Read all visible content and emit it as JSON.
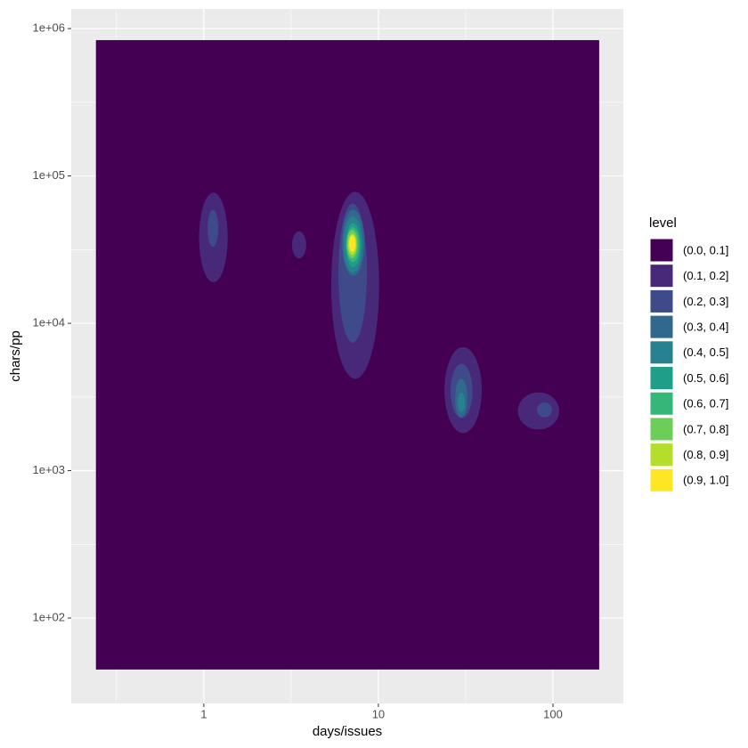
{
  "chart_data": {
    "type": "contour",
    "x_label": "days/issues",
    "y_label": "chars/pp",
    "log_x": true,
    "log_y": true,
    "grid": true,
    "xlim": [
      0.174,
      253
    ],
    "ylim": [
      26.3,
      1360000
    ],
    "xticks": [
      1,
      10,
      100
    ],
    "yticks": [
      {
        "value": 100,
        "label": "1e+02"
      },
      {
        "value": 1000,
        "label": "1e+03"
      },
      {
        "value": 10000,
        "label": "1e+04"
      },
      {
        "value": 100000,
        "label": "1e+05"
      },
      {
        "value": 1000000,
        "label": "1e+06"
      }
    ],
    "xminor": [
      0.316,
      3.162,
      31.62
    ],
    "yminor": [
      316.2,
      3162,
      31620,
      316200
    ],
    "legend_title": "level",
    "legend_position": "right",
    "levels": [
      {
        "name": "(0.0, 0.1]",
        "color": "#440154"
      },
      {
        "name": "(0.1, 0.2]",
        "color": "#482878"
      },
      {
        "name": "(0.2, 0.3]",
        "color": "#3E4A89"
      },
      {
        "name": "(0.3, 0.4]",
        "color": "#31688E"
      },
      {
        "name": "(0.4, 0.5]",
        "color": "#26828E"
      },
      {
        "name": "(0.5, 0.6]",
        "color": "#1F9E89"
      },
      {
        "name": "(0.6, 0.7]",
        "color": "#35B779"
      },
      {
        "name": "(0.7, 0.8]",
        "color": "#6DCD59"
      },
      {
        "name": "(0.8, 0.9]",
        "color": "#B4DE2C"
      },
      {
        "name": "(0.9, 1.0]",
        "color": "#FDE725"
      }
    ],
    "contours": [
      {
        "level": 0,
        "shape": "rect",
        "x": [
          0.241,
          184
        ],
        "y": [
          44.7,
          835000
        ]
      },
      {
        "level": 1,
        "x": [
          0.94,
          1.37
        ],
        "y": [
          19000,
          77000
        ]
      },
      {
        "level": 2,
        "x": [
          1.05,
          1.21
        ],
        "y": [
          33000,
          59000
        ]
      },
      {
        "level": 1,
        "x": [
          3.2,
          3.86
        ],
        "y": [
          27600,
          42000
        ]
      },
      {
        "level": 1,
        "x": [
          5.37,
          10.1
        ],
        "y": [
          4200,
          78000
        ]
      },
      {
        "level": 2,
        "x": [
          5.9,
          8.6
        ],
        "y": [
          7400,
          65000
        ]
      },
      {
        "level": 3,
        "x": [
          6.2,
          8.3
        ],
        "y": [
          21000,
          59000
        ]
      },
      {
        "level": 4,
        "x": [
          6.3,
          8.1
        ],
        "y": [
          22000,
          53000
        ]
      },
      {
        "level": 5,
        "x": [
          6.5,
          7.9
        ],
        "y": [
          24000,
          48000
        ]
      },
      {
        "level": 6,
        "x": [
          6.55,
          7.8
        ],
        "y": [
          26000,
          45000
        ]
      },
      {
        "level": 7,
        "x": [
          6.6,
          7.6
        ],
        "y": [
          27500,
          43000
        ]
      },
      {
        "level": 8,
        "x": [
          6.7,
          7.5
        ],
        "y": [
          29000,
          40500
        ]
      },
      {
        "level": 9,
        "x": [
          6.8,
          7.4
        ],
        "y": [
          30500,
          39500
        ]
      },
      {
        "level": 1,
        "x": [
          23.9,
          39.1
        ],
        "y": [
          1800,
          6900
        ]
      },
      {
        "level": 2,
        "x": [
          25.9,
          34.6
        ],
        "y": [
          2270,
          5300
        ]
      },
      {
        "level": 3,
        "x": [
          27.5,
          32.3
        ],
        "y": [
          2300,
          4200
        ]
      },
      {
        "level": 4,
        "x": [
          28.5,
          31.3
        ],
        "y": [
          2500,
          3400
        ]
      },
      {
        "level": 1,
        "x": [
          63,
          108.6
        ],
        "y": [
          1900,
          3400
        ]
      },
      {
        "level": 2,
        "x": [
          81,
          98.8
        ],
        "y": [
          2300,
          2900
        ]
      }
    ]
  }
}
